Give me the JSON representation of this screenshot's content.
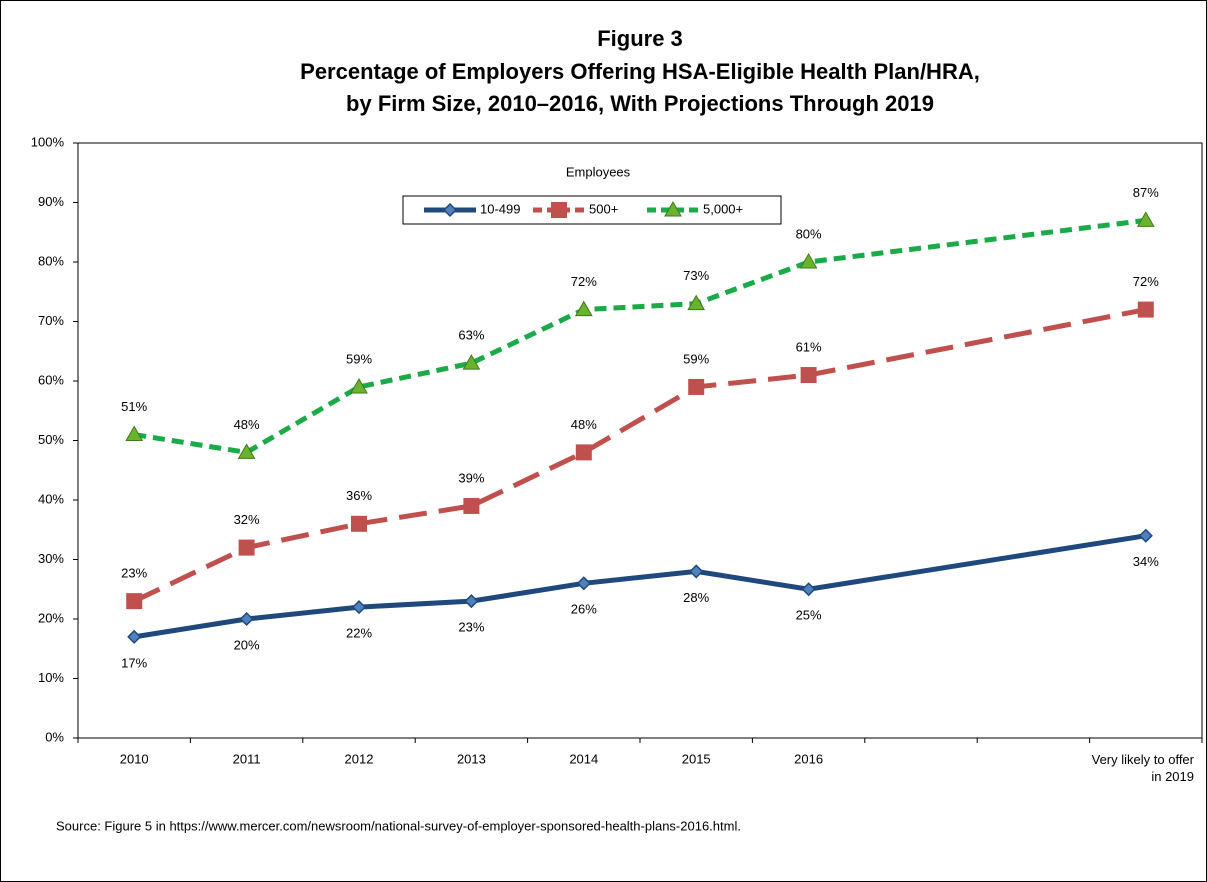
{
  "chart_data": {
    "type": "line",
    "title": "Figure 3",
    "subtitle": [
      "Percentage of Employers Offering HSA-Eligible Health Plan/HRA,",
      "by Firm Size, 2010–2016, With Projections Through 2019"
    ],
    "x": [
      2010,
      2011,
      2012,
      2013,
      2014,
      2015,
      2016,
      2019
    ],
    "xlim": [
      2009.5,
      2019.5
    ],
    "xticks": [
      2010,
      2011,
      2012,
      2013,
      2014,
      2015,
      2016,
      {
        "value": 2019,
        "label": "Very likely to offer in 2019"
      }
    ],
    "ylim": [
      0,
      100
    ],
    "yticks": [
      {
        "value": 0,
        "label": "0%"
      },
      {
        "value": 10,
        "label": "10%"
      },
      {
        "value": 20,
        "label": "20%"
      },
      {
        "value": 30,
        "label": "30%"
      },
      {
        "value": 40,
        "label": "40%"
      },
      {
        "value": 50,
        "label": "50%"
      },
      {
        "value": 60,
        "label": "60%"
      },
      {
        "value": 70,
        "label": "70%"
      },
      {
        "value": 80,
        "label": "80%"
      },
      {
        "value": 90,
        "label": "90%"
      },
      {
        "value": 100,
        "label": "100%"
      }
    ],
    "legend_title": "Employees",
    "legend_position": "top",
    "series": [
      {
        "name": "10-499",
        "color": "#1f497d",
        "line_style": "solid",
        "marker": "diamond",
        "label_position": "below",
        "values": [
          17,
          20,
          22,
          23,
          26,
          28,
          25,
          34
        ],
        "value_labels": [
          "17%",
          "20%",
          "22%",
          "23%",
          "26%",
          "28%",
          "25%",
          "34%"
        ]
      },
      {
        "name": "500+",
        "color": "#c0504d",
        "line_style": "long-dash",
        "marker": "square",
        "label_position": "above",
        "values": [
          23,
          32,
          36,
          39,
          48,
          59,
          61,
          72
        ],
        "value_labels": [
          "23%",
          "32%",
          "36%",
          "39%",
          "48%",
          "59%",
          "61%",
          "72%"
        ]
      },
      {
        "name": "5,000+",
        "color": "#1aaa48",
        "line_style": "dash",
        "marker": "triangle",
        "label_position": "above",
        "values": [
          51,
          48,
          59,
          63,
          72,
          73,
          80,
          87
        ],
        "value_labels": [
          "51%",
          "48%",
          "59%",
          "63%",
          "72%",
          "73%",
          "80%",
          "87%"
        ]
      }
    ],
    "source": "Source: Figure 5 in https://www.mercer.com/newsroom/national-survey-of-employer-sponsored-health-plans-2016.html."
  }
}
